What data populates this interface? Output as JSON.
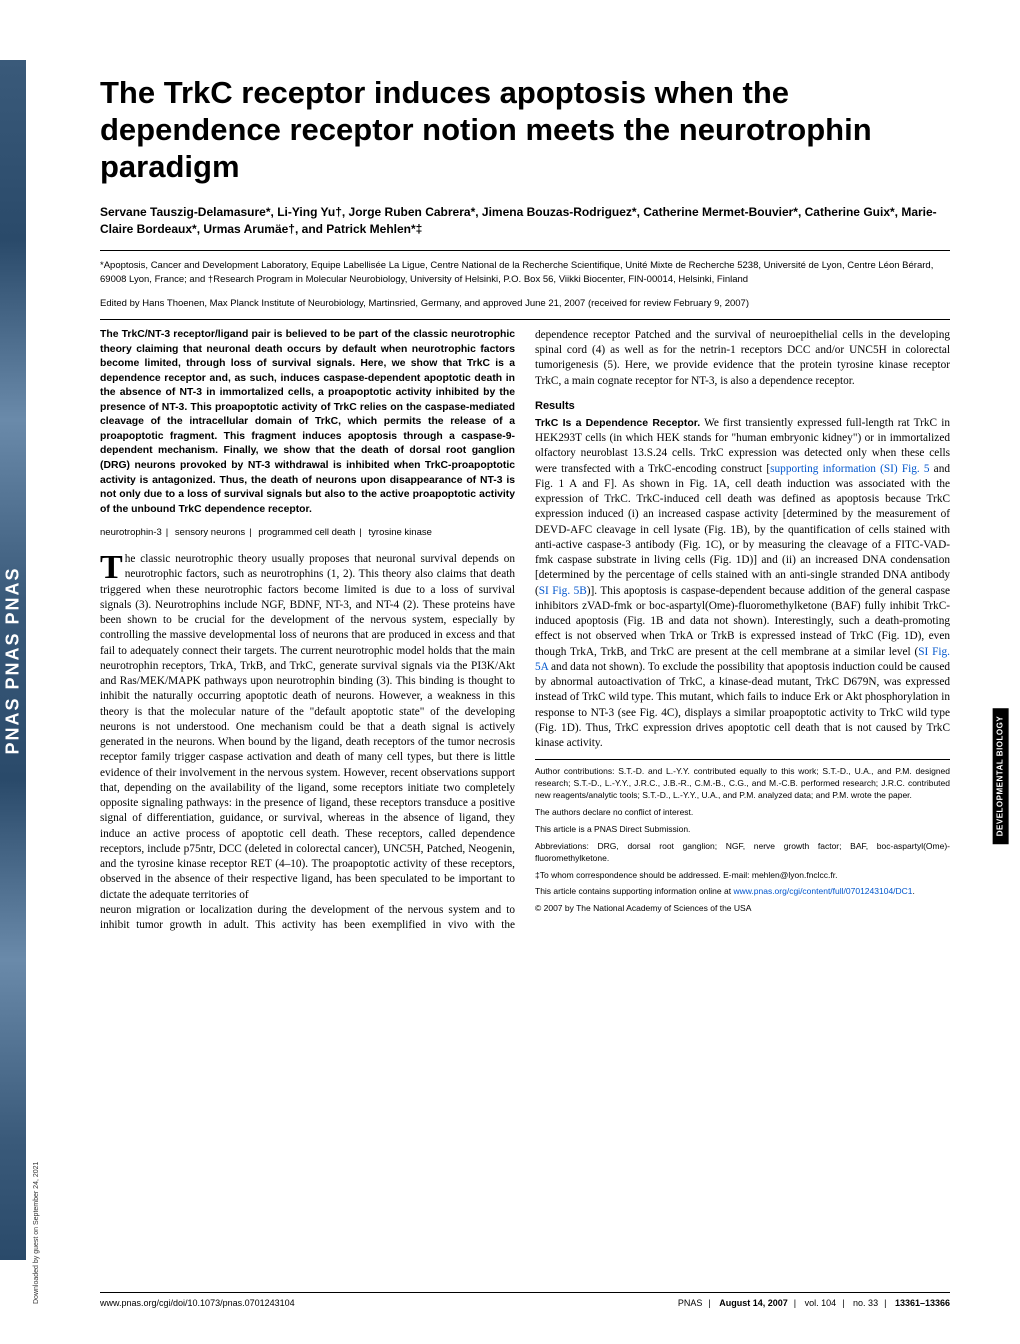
{
  "spine_text": "PNAS   PNAS   PNAS",
  "downloaded": "Downloaded by guest on September 24, 2021",
  "title": "The TrkC receptor induces apoptosis when the dependence receptor notion meets the neurotrophin paradigm",
  "authors": "Servane Tauszig-Delamasure*, Li-Ying Yu†, Jorge Ruben Cabrera*, Jimena Bouzas-Rodriguez*, Catherine Mermet-Bouvier*, Catherine Guix*, Marie-Claire Bordeaux*, Urmas Arumäe†, and Patrick Mehlen*‡",
  "affiliations": "*Apoptosis, Cancer and Development Laboratory, Equipe Labellisée La Ligue, Centre National de la Recherche Scientifique, Unité Mixte de Recherche 5238, Université de Lyon, Centre Léon Bérard, 69008 Lyon, France; and †Research Program in Molecular Neurobiology, University of Helsinki, P.O. Box 56, Viikki Biocenter, FIN-00014, Helsinki, Finland",
  "edited": "Edited by Hans Thoenen, Max Planck Institute of Neurobiology, Martinsried, Germany, and approved June 21, 2007 (received for review February 9, 2007)",
  "abstract": "The TrkC/NT-3 receptor/ligand pair is believed to be part of the classic neurotrophic theory claiming that neuronal death occurs by default when neurotrophic factors become limited, through loss of survival signals. Here, we show that TrkC is a dependence receptor and, as such, induces caspase-dependent apoptotic death in the absence of NT-3 in immortalized cells, a proapoptotic activity inhibited by the presence of NT-3. This proapoptotic activity of TrkC relies on the caspase-mediated cleavage of the intracellular domain of TrkC, which permits the release of a proapoptotic fragment. This fragment induces apoptosis through a caspase-9-dependent mechanism. Finally, we show that the death of dorsal root ganglion (DRG) neurons provoked by NT-3 withdrawal is inhibited when TrkC-proapoptotic activity is antagonized. Thus, the death of neurons upon disappearance of NT-3 is not only due to a loss of survival signals but also to the active proapoptotic activity of the unbound TrkC dependence receptor.",
  "keywords": [
    "neurotrophin-3",
    "sensory neurons",
    "programmed cell death",
    "tyrosine kinase"
  ],
  "body1_first": "he classic neurotrophic theory usually proposes that neuronal survival depends on neurotrophic factors, such as neurotrophins (1, 2). This theory also claims that death triggered when these neurotrophic factors become limited is due to a loss of survival signals (3). Neurotrophins include NGF, BDNF, NT-3, and NT-4 (2). These proteins have been shown to be crucial for the development of the nervous system, especially by controlling the massive developmental loss of neurons that are produced in excess and that fail to adequately connect their targets. The current neurotrophic model holds that the main neurotrophin receptors, TrkA, TrkB, and TrkC, generate survival signals via the PI3K/Akt and Ras/MEK/MAPK pathways upon neurotrophin binding (3). This binding is thought to inhibit the naturally occurring apoptotic death of neurons. However, a weakness in this theory is that the molecular nature of the \"default apoptotic state\" of the developing neurons is not understood. One mechanism could be that a death signal is actively generated in the neurons. When bound by the ligand, death receptors of the tumor necrosis receptor family trigger caspase activation and death of many cell types, but there is little evidence of their involvement in the nervous system. However, recent observations support that, depending on the availability of the ligand, some receptors initiate two completely opposite signaling pathways: in the presence of ligand, these receptors transduce a positive signal of differentiation, guidance, or survival, whereas in the absence of ligand, they induce an active process of apoptotic cell death. These receptors, called dependence receptors, include p75ntr, DCC (deleted in colorectal cancer), UNC5H, Patched, Neogenin, and the tyrosine kinase receptor RET (4–10). The proapoptotic activity of these receptors, observed in the absence of their respective ligand, has been speculated to be important to dictate the adequate territories of",
  "body2": "neuron migration or localization during the development of the nervous system and to inhibit tumor growth in adult. This activity has been exemplified in vivo with the dependence receptor Patched and the survival of neuroepithelial cells in the developing spinal cord (4) as well as for the netrin-1 receptors DCC and/or UNC5H in colorectal tumorigenesis (5). Here, we provide evidence that the protein tyrosine kinase receptor TrkC, a main cognate receptor for NT-3, is also a dependence receptor.",
  "results_heading": "Results",
  "results_runin": "TrkC Is a Dependence Receptor.",
  "results_body_a": " We first transiently expressed full-length rat TrkC in HEK293T cells (in which HEK stands for \"human embryonic kidney\") or in immortalized olfactory neuroblast 13.S.24 cells. TrkC expression was detected only when these cells were transfected with a TrkC-encoding construct [",
  "si_link_1": "supporting information (SI) Fig. 5",
  "results_body_b": " and Fig. 1 A and F]. As shown in Fig. 1A, cell death induction was associated with the expression of TrkC. TrkC-induced cell death was defined as apoptosis because TrkC expression induced (i) an increased caspase activity [determined by the measurement of DEVD-AFC cleavage in cell lysate (Fig. 1B), by the quantification of cells stained with anti-active caspase-3 antibody (Fig. 1C), or by measuring the cleavage of a FITC-VAD-fmk caspase substrate in living cells (Fig. 1D)] and (ii) an increased DNA condensation [determined by the percentage of cells stained with an anti-single stranded DNA antibody (",
  "si_link_2": "SI Fig. 5B",
  "results_body_c": ")]. This apoptosis is caspase-dependent because addition of the general caspase inhibitors zVAD-fmk or boc-aspartyl(Ome)-fluoromethylketone (BAF) fully inhibit TrkC-induced apoptosis (Fig. 1B and data not shown). Interestingly, such a death-promoting effect is not observed when TrkA or TrkB is expressed instead of TrkC (Fig. 1D), even though TrkA, TrkB, and TrkC are present at the cell membrane at a similar level (",
  "si_link_3": "SI Fig. 5A",
  "results_body_d": " and data not shown). To exclude the possibility that apoptosis induction could be caused by abnormal autoactivation of TrkC, a kinase-dead mutant, TrkC D679N, was expressed instead of TrkC wild type. This mutant, which fails to induce Erk or Akt phosphorylation in response to NT-3 (see Fig. 4C), displays a similar proapoptotic activity to TrkC wild type (Fig. 1D). Thus, TrkC expression drives apoptotic cell death that is not caused by TrkC kinase activity.",
  "foot": {
    "contrib": "Author contributions: S.T.-D. and L.-Y.Y. contributed equally to this work; S.T.-D., U.A., and P.M. designed research; S.T.-D., L.-Y.Y., J.R.C., J.B.-R., C.M.-B., C.G., and M.-C.B. performed research; J.R.C. contributed new reagents/analytic tools; S.T.-D., L.-Y.Y., U.A., and P.M. analyzed data; and P.M. wrote the paper.",
    "conflict": "The authors declare no conflict of interest.",
    "direct": "This article is a PNAS Direct Submission.",
    "abbrev": "Abbreviations: DRG, dorsal root ganglion; NGF, nerve growth factor; BAF, boc-aspartyl(Ome)-fluoromethylketone.",
    "corresp": "‡To whom correspondence should be addressed. E-mail: mehlen@lyon.fnclcc.fr.",
    "si_a": "This article contains supporting information online at ",
    "si_link": "www.pnas.org/cgi/content/full/0701243104/DC1",
    "si_b": ".",
    "copyright": "© 2007 by The National Academy of Sciences of the USA"
  },
  "footer": {
    "doi": "www.pnas.org/cgi/doi/10.1073/pnas.0701243104",
    "journal": "PNAS",
    "date": "August 14, 2007",
    "vol": "vol. 104",
    "issue": "no. 33",
    "pages": "13361–13366"
  },
  "side_label": "DEVELOPMENTAL\nBIOLOGY",
  "colors": {
    "link": "#0055cc",
    "text": "#000000",
    "spine_dark": "#2a4a6a",
    "spine_light": "#6a8aaa"
  },
  "typography": {
    "title_fontsize": 31,
    "title_family": "Arial",
    "body_fontsize": 11.3,
    "body_family": "Georgia",
    "abstract_fontsize": 10.4,
    "footnote_fontsize": 8.5
  }
}
